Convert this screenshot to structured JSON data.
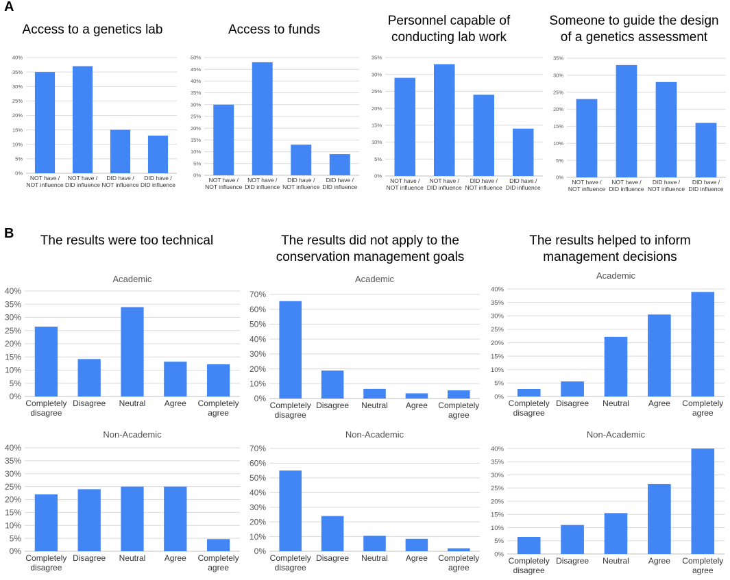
{
  "panels": {
    "a": "A",
    "b": "B"
  },
  "colors": {
    "bar": "#4285f4",
    "grid": "#d9d9d9",
    "axis": "#bfbfbf"
  },
  "chart_data": [
    {
      "type": "bar",
      "panel": "A",
      "title": "Access to a genetics lab",
      "categories": [
        "NOT have /\nNOT influence",
        "NOT have /\nDID influence",
        "DID have /\nNOT influence",
        "DID have /\nDID influence"
      ],
      "values": [
        35,
        37,
        15,
        13
      ],
      "ylim": [
        0,
        40
      ],
      "yticks": [
        0,
        5,
        10,
        15,
        20,
        25,
        30,
        35,
        40
      ],
      "ylabel": "",
      "xlabel": "",
      "grid": true
    },
    {
      "type": "bar",
      "panel": "A",
      "title": "Access to funds",
      "categories": [
        "NOT have /\nNOT influence",
        "NOT have /\nDID influence",
        "DID have /\nNOT influence",
        "DID have /\nDID influence"
      ],
      "values": [
        30,
        48,
        13,
        9
      ],
      "ylim": [
        0,
        50
      ],
      "yticks": [
        0,
        5,
        10,
        15,
        20,
        25,
        30,
        35,
        40,
        45,
        50
      ],
      "ylabel": "",
      "xlabel": "",
      "grid": true
    },
    {
      "type": "bar",
      "panel": "A",
      "title": "Personnel capable of\nconducting lab work",
      "categories": [
        "NOT have /\nNOT influence",
        "NOT have /\nDID influence",
        "DID have /\nNOT influence",
        "DID have /\nDID influence"
      ],
      "values": [
        29,
        33,
        24,
        14
      ],
      "ylim": [
        0,
        35
      ],
      "yticks": [
        0,
        5,
        10,
        15,
        20,
        25,
        30,
        35
      ],
      "ylabel": "",
      "xlabel": "",
      "grid": true
    },
    {
      "type": "bar",
      "panel": "A",
      "title": "Someone to guide the design\nof a genetics assessment",
      "categories": [
        "NOT have /\nNOT influence",
        "NOT have /\nDID influence",
        "DID have /\nNOT influence",
        "DID have /\nDID influence"
      ],
      "values": [
        23,
        33,
        28,
        16
      ],
      "ylim": [
        0,
        35
      ],
      "yticks": [
        0,
        5,
        10,
        15,
        20,
        25,
        30,
        35
      ],
      "ylabel": "",
      "xlabel": "",
      "grid": true
    },
    {
      "type": "bar",
      "panel": "B",
      "group_title": "The results were too technical",
      "subtitle": "Academic",
      "categories": [
        "Completely\ndisagree",
        "Disagree",
        "Neutral",
        "Agree",
        "Completely\nagree"
      ],
      "values": [
        26.5,
        14.2,
        33.9,
        13.2,
        12.2
      ],
      "ylim": [
        0,
        40
      ],
      "yticks": [
        0,
        5,
        10,
        15,
        20,
        25,
        30,
        35,
        40
      ],
      "ylabel": "",
      "xlabel": "",
      "grid": true
    },
    {
      "type": "bar",
      "panel": "B",
      "group_title": "The results were too technical",
      "subtitle": "Non-Academic",
      "categories": [
        "Completely\ndisagree",
        "Disagree",
        "Neutral",
        "Agree",
        "Completely\nagree"
      ],
      "values": [
        22,
        24,
        25,
        25,
        4.7
      ],
      "ylim": [
        0,
        40
      ],
      "yticks": [
        0,
        5,
        10,
        15,
        20,
        25,
        30,
        35,
        40
      ],
      "ylabel": "",
      "xlabel": "",
      "grid": true
    },
    {
      "type": "bar",
      "panel": "B",
      "group_title": "The results did not apply to the\nconservation management goals",
      "subtitle": "Academic",
      "categories": [
        "Completely\ndisagree",
        "Disagree",
        "Neutral",
        "Agree",
        "Completely\nagree"
      ],
      "values": [
        65.5,
        18.8,
        6.5,
        3.5,
        5.5
      ],
      "ylim": [
        0,
        70
      ],
      "yticks": [
        0,
        10,
        20,
        30,
        40,
        50,
        60,
        70
      ],
      "ylabel": "",
      "xlabel": "",
      "grid": true
    },
    {
      "type": "bar",
      "panel": "B",
      "group_title": "The results did not apply to the\nconservation management goals",
      "subtitle": "Non-Academic",
      "categories": [
        "Completely\ndisagree",
        "Disagree",
        "Neutral",
        "Agree",
        "Completely\nagree"
      ],
      "values": [
        55,
        24,
        10.5,
        8.5,
        2
      ],
      "ylim": [
        0,
        70
      ],
      "yticks": [
        0,
        10,
        20,
        30,
        40,
        50,
        60,
        70
      ],
      "ylabel": "",
      "xlabel": "",
      "grid": true
    },
    {
      "type": "bar",
      "panel": "B",
      "group_title": "The results helped to inform\nmanagement decisions",
      "subtitle": "Academic",
      "categories": [
        "Completely\ndisagree",
        "Disagree",
        "Neutral",
        "Agree",
        "Completely\nagree"
      ],
      "values": [
        2.8,
        5.6,
        22.2,
        30.5,
        38.9
      ],
      "ylim": [
        0,
        40
      ],
      "yticks": [
        0,
        5,
        10,
        15,
        20,
        25,
        30,
        35,
        40
      ],
      "ylabel": "",
      "xlabel": "",
      "grid": true
    },
    {
      "type": "bar",
      "panel": "B",
      "group_title": "The results helped to inform\nmanagement decisions",
      "subtitle": "Non-Academic",
      "categories": [
        "Completely\ndisagree",
        "Disagree",
        "Neutral",
        "Agree",
        "Completely\nagree"
      ],
      "values": [
        6.5,
        11,
        15.5,
        26.5,
        40
      ],
      "ylim": [
        0,
        40
      ],
      "yticks": [
        0,
        5,
        10,
        15,
        20,
        25,
        30,
        35,
        40
      ],
      "ylabel": "",
      "xlabel": "",
      "grid": true
    }
  ]
}
